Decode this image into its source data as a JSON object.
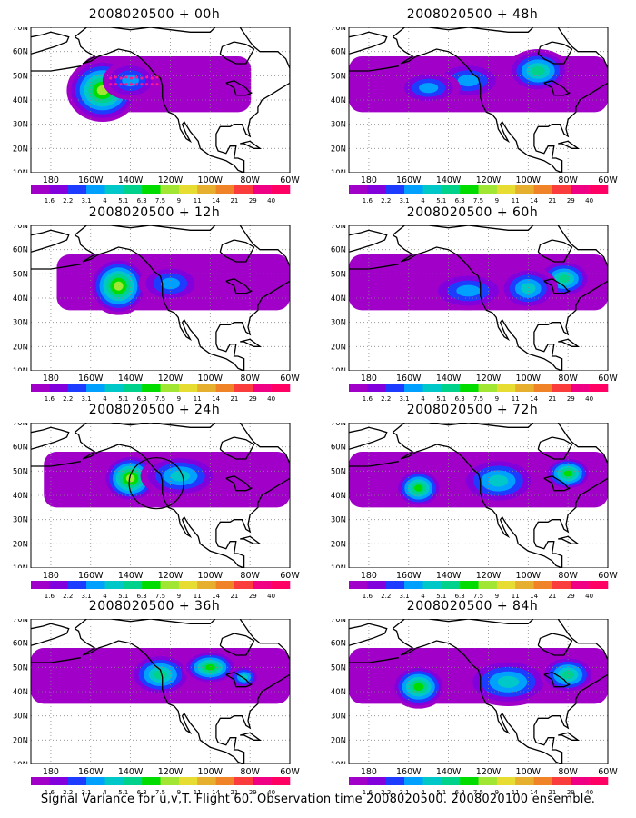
{
  "panels": [
    {
      "title": "2008020500 + 00h",
      "plumes": [
        {
          "x": -154,
          "y": 44,
          "rx": 18,
          "ry": 13,
          "level": 7
        },
        {
          "x": -140,
          "y": 48,
          "rx": 14,
          "ry": 8,
          "level": 3
        }
      ],
      "band": [
        0.2,
        0.85
      ],
      "flight_track": true,
      "circle": false
    },
    {
      "title": "2008020500 + 12h",
      "plumes": [
        {
          "x": -146,
          "y": 45,
          "rx": 15,
          "ry": 12,
          "level": 7
        },
        {
          "x": -120,
          "y": 46,
          "rx": 16,
          "ry": 8,
          "level": 3
        }
      ],
      "band": [
        0.1,
        1.0
      ],
      "flight_track": false,
      "circle": false
    },
    {
      "title": "2008020500 + 24h",
      "plumes": [
        {
          "x": -140,
          "y": 47,
          "rx": 14,
          "ry": 10,
          "level": 7
        },
        {
          "x": -115,
          "y": 48,
          "rx": 20,
          "ry": 9,
          "level": 4
        }
      ],
      "band": [
        0.05,
        1.0
      ],
      "flight_track": false,
      "circle": true
    },
    {
      "title": "2008020500 + 36h",
      "plumes": [
        {
          "x": -125,
          "y": 47,
          "rx": 16,
          "ry": 9,
          "level": 5
        },
        {
          "x": -100,
          "y": 50,
          "rx": 14,
          "ry": 7,
          "level": 6
        },
        {
          "x": -83,
          "y": 46,
          "rx": 8,
          "ry": 5,
          "level": 4
        }
      ],
      "band": [
        0.0,
        1.0
      ],
      "flight_track": false,
      "circle": false
    },
    {
      "title": "2008020500 + 48h",
      "plumes": [
        {
          "x": -95,
          "y": 52,
          "rx": 16,
          "ry": 9,
          "level": 5
        },
        {
          "x": -130,
          "y": 48,
          "rx": 18,
          "ry": 8,
          "level": 3
        },
        {
          "x": -150,
          "y": 45,
          "rx": 16,
          "ry": 7,
          "level": 3
        }
      ],
      "band": [
        0.0,
        1.0
      ],
      "flight_track": false,
      "circle": false
    },
    {
      "title": "2008020500 + 60h",
      "plumes": [
        {
          "x": -82,
          "y": 48,
          "rx": 14,
          "ry": 8,
          "level": 5
        },
        {
          "x": -130,
          "y": 43,
          "rx": 20,
          "ry": 8,
          "level": 3
        },
        {
          "x": -100,
          "y": 44,
          "rx": 15,
          "ry": 9,
          "level": 4
        }
      ],
      "band": [
        0.0,
        1.0
      ],
      "flight_track": false,
      "circle": false
    },
    {
      "title": "2008020500 + 72h",
      "plumes": [
        {
          "x": -155,
          "y": 43,
          "rx": 12,
          "ry": 8,
          "level": 6
        },
        {
          "x": -80,
          "y": 49,
          "rx": 12,
          "ry": 7,
          "level": 6
        },
        {
          "x": -115,
          "y": 46,
          "rx": 20,
          "ry": 10,
          "level": 4
        }
      ],
      "band": [
        0.0,
        1.0
      ],
      "flight_track": false,
      "circle": false
    },
    {
      "title": "2008020500 + 84h",
      "plumes": [
        {
          "x": -155,
          "y": 42,
          "rx": 14,
          "ry": 9,
          "level": 6
        },
        {
          "x": -110,
          "y": 44,
          "rx": 22,
          "ry": 10,
          "level": 4
        },
        {
          "x": -80,
          "y": 47,
          "rx": 14,
          "ry": 8,
          "level": 5
        }
      ],
      "band": [
        0.0,
        1.0
      ],
      "flight_track": false,
      "circle": false
    }
  ],
  "lon_labels": [
    "180",
    "160W",
    "140W",
    "120W",
    "100W",
    "80W",
    "60W"
  ],
  "lat_labels": [
    "10N",
    "20N",
    "30N",
    "40N",
    "50N",
    "60N",
    "70N"
  ],
  "colorbar": {
    "labels": [
      "1.6",
      "2.2",
      "3.1",
      "4",
      "5.1",
      "6.3",
      "7.5",
      "9",
      "11",
      "14",
      "21",
      "29",
      "40"
    ],
    "colors": [
      "#a000c8",
      "#8200dc",
      "#1e3cff",
      "#00a0ff",
      "#00c8c8",
      "#00d28c",
      "#00dc00",
      "#a0e632",
      "#e6dc32",
      "#e6af2d",
      "#f08228",
      "#fa3c3c",
      "#f00082",
      "#ff0064"
    ]
  },
  "caption": "Signal Variance for u,v,T. Flight 60. Observation time 2008020500. 2008020100 ensemble."
}
